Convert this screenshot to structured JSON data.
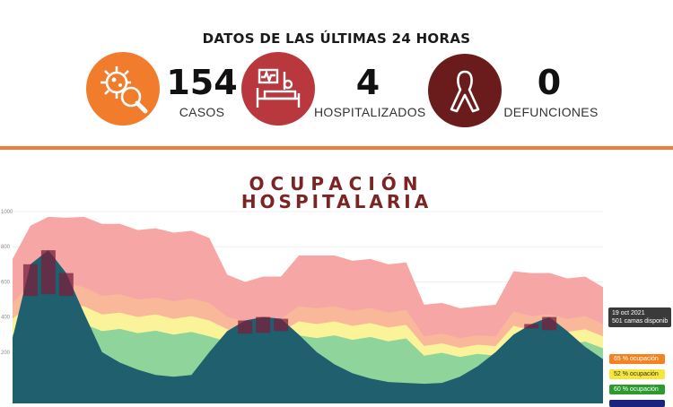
{
  "header": {
    "title": "DATOS DE LAS ÚLTIMAS 24 HORAS",
    "stats": [
      {
        "value": "154",
        "label": "CASOS",
        "icon": "virus-magnifier-icon",
        "color": "#f07c2c"
      },
      {
        "value": "4",
        "label": "HOSPITALIZADOS",
        "icon": "hospital-bed-icon",
        "color": "#b8383d"
      },
      {
        "value": "0",
        "label": "DEFUNCIONES",
        "icon": "awareness-ribbon-icon",
        "color": "#6a1b1b"
      }
    ]
  },
  "chart_title_line1": "OCUPACIÓN",
  "chart_title_line2": "HOSPITALARIA",
  "tooltip": {
    "date": "19 oct 2021",
    "text": "501 camas disponib"
  },
  "thresholds": [
    {
      "label": "65 % ocupación",
      "color": "#f58220",
      "text_color": "#ffffff"
    },
    {
      "label": "52 % ocupación",
      "color": "#f5e63a",
      "text_color": "#333333"
    },
    {
      "label": "60 % ocupación",
      "color": "#2c9a2c",
      "text_color": "#ffffff"
    }
  ],
  "chart_data": {
    "type": "area",
    "y_ticks": [
      200,
      400,
      600,
      800,
      1000
    ],
    "ylim": [
      0,
      1000
    ],
    "series": [
      {
        "role": "capacity",
        "color": "#f7a6a6",
        "values": [
          720,
          930,
          960,
          975,
          960,
          940,
          920,
          905,
          895,
          890,
          880,
          860,
          630,
          610,
          620,
          640,
          740,
          760,
          740,
          730,
          720,
          710,
          700,
          480,
          470,
          460,
          450,
          480,
          650,
          660,
          640,
          630,
          620,
          580
        ]
      },
      {
        "role": "red-threshold",
        "color": "#f9b89a",
        "values": [
          470,
          600,
          610,
          600,
          560,
          530,
          520,
          510,
          500,
          500,
          495,
          490,
          390,
          385,
          390,
          400,
          450,
          460,
          450,
          445,
          440,
          435,
          430,
          300,
          295,
          290,
          285,
          300,
          420,
          415,
          405,
          400,
          395,
          370
        ]
      },
      {
        "role": "orange-threshold",
        "color": "#faf39a",
        "values": [
          380,
          480,
          490,
          485,
          450,
          425,
          415,
          410,
          405,
          400,
          395,
          390,
          320,
          315,
          318,
          325,
          365,
          370,
          365,
          360,
          355,
          350,
          345,
          245,
          240,
          235,
          232,
          245,
          340,
          336,
          330,
          325,
          320,
          300
        ]
      },
      {
        "role": "yellow-threshold",
        "color": "#8fd49a",
        "values": [
          290,
          375,
          380,
          378,
          350,
          330,
          322,
          318,
          312,
          310,
          305,
          300,
          250,
          245,
          248,
          252,
          285,
          290,
          285,
          280,
          276,
          272,
          268,
          190,
          186,
          183,
          180,
          190,
          265,
          262,
          258,
          254,
          250,
          232
        ]
      },
      {
        "role": "covid-occupied",
        "color": "#1f5f6e",
        "values": [
          280,
          700,
          780,
          650,
          420,
          200,
          140,
          100,
          70,
          60,
          70,
          200,
          320,
          380,
          400,
          390,
          300,
          200,
          130,
          80,
          50,
          30,
          25,
          20,
          25,
          60,
          120,
          200,
          300,
          360,
          400,
          320,
          230,
          160
        ]
      }
    ]
  }
}
